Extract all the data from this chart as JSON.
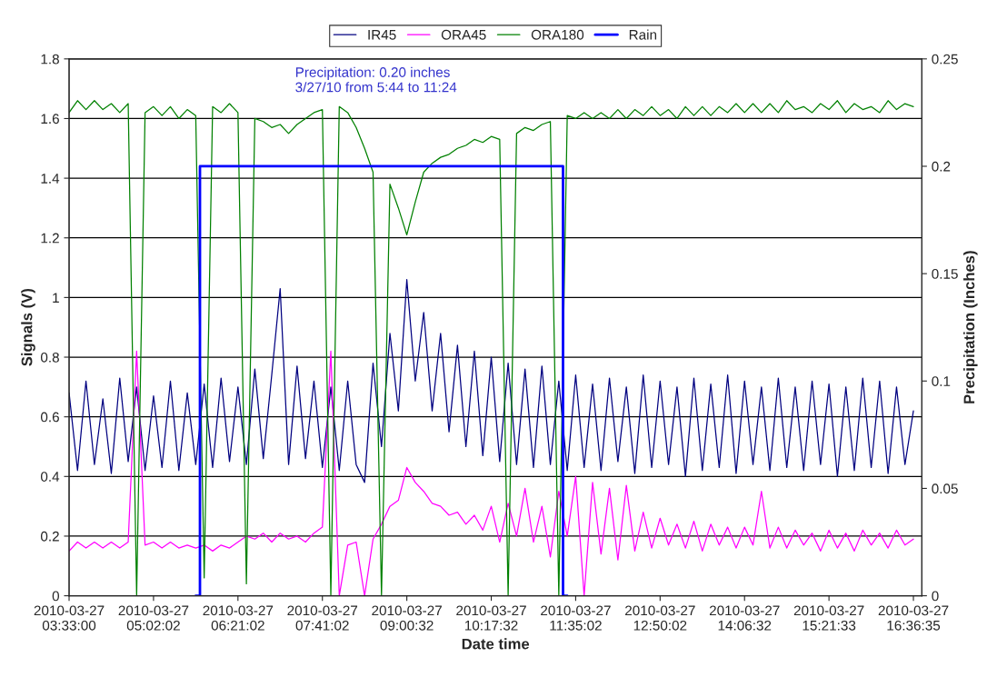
{
  "chart_data": {
    "type": "line",
    "xlabel": "Date time",
    "ylabel": "Signals (V)",
    "y2label": "Precipitation (Inches)",
    "annotations": [
      "Precipitation: 0.20 inches\n3/27/10 from 5:44 to 11:24"
    ],
    "categories": [
      "2010-03-27\n03:33:00",
      null,
      null,
      null,
      null,
      null,
      null,
      null,
      null,
      null,
      "2010-03-27\n05:02:02",
      null,
      null,
      null,
      null,
      null,
      null,
      null,
      null,
      null,
      "2010-03-27\n06:21:02",
      null,
      null,
      null,
      null,
      null,
      null,
      null,
      null,
      null,
      "2010-03-27\n07:41:02",
      null,
      null,
      null,
      null,
      null,
      null,
      null,
      null,
      null,
      "2010-03-27\n09:00:32",
      null,
      null,
      null,
      null,
      null,
      null,
      null,
      null,
      null,
      "2010-03-27\n10:17:32",
      null,
      null,
      null,
      null,
      null,
      null,
      null,
      null,
      null,
      "2010-03-27\n11:35:02",
      null,
      null,
      null,
      null,
      null,
      null,
      null,
      null,
      null,
      "2010-03-27\n12:50:02",
      null,
      null,
      null,
      null,
      null,
      null,
      null,
      null,
      null,
      "2010-03-27\n14:06:32",
      null,
      null,
      null,
      null,
      null,
      null,
      null,
      null,
      null,
      "2010-03-27\n15:21:33",
      null,
      null,
      null,
      null,
      null,
      null,
      null,
      null,
      null,
      "2010-03-27\n16:36:35"
    ],
    "ylim": [
      0,
      1.8
    ],
    "yticks": [
      0,
      0.2,
      0.4,
      0.6,
      0.8,
      1,
      1.2,
      1.4,
      1.6,
      1.8
    ],
    "y2lim": [
      0,
      0.25
    ],
    "y2ticks": [
      0,
      0.05,
      0.1,
      0.15,
      0.2,
      0.25
    ],
    "grid": "y",
    "legend": "top",
    "series": [
      {
        "name": "IR45",
        "color": "#000080",
        "values": [
          0.68,
          0.42,
          0.72,
          0.44,
          0.66,
          0.41,
          0.73,
          0.45,
          0.7,
          0.42,
          0.67,
          0.43,
          0.72,
          0.42,
          0.68,
          0.44,
          0.71,
          0.43,
          0.73,
          0.45,
          0.7,
          0.44,
          0.76,
          0.46,
          0.74,
          1.03,
          0.44,
          0.77,
          0.46,
          0.72,
          0.43,
          0.7,
          0.42,
          0.72,
          0.44,
          0.38,
          0.78,
          0.5,
          0.88,
          0.62,
          1.06,
          0.72,
          0.95,
          0.62,
          0.88,
          0.55,
          0.84,
          0.5,
          0.82,
          0.47,
          0.8,
          0.45,
          0.78,
          0.44,
          0.76,
          0.43,
          0.77,
          0.44,
          0.72,
          0.42,
          0.74,
          0.43,
          0.71,
          0.42,
          0.73,
          0.45,
          0.7,
          0.41,
          0.74,
          0.43,
          0.72,
          0.44,
          0.7,
          0.4,
          0.73,
          0.42,
          0.71,
          0.43,
          0.74,
          0.41,
          0.72,
          0.44,
          0.7,
          0.42,
          0.73,
          0.43,
          0.7,
          0.42,
          0.72,
          0.44,
          0.71,
          0.4,
          0.7,
          0.42,
          0.73,
          0.43,
          0.72,
          0.41,
          0.7,
          0.44,
          0.62
        ]
      },
      {
        "name": "ORA45",
        "color": "#ff00ff",
        "values": [
          0.15,
          0.18,
          0.16,
          0.18,
          0.16,
          0.18,
          0.16,
          0.18,
          0.82,
          0.17,
          0.18,
          0.16,
          0.18,
          0.16,
          0.17,
          0.16,
          0.17,
          0.15,
          0.17,
          0.16,
          0.18,
          0.2,
          0.19,
          0.21,
          0.18,
          0.21,
          0.19,
          0.2,
          0.18,
          0.21,
          0.23,
          0.82,
          0.0,
          0.17,
          0.18,
          0.0,
          0.19,
          0.24,
          0.3,
          0.32,
          0.43,
          0.38,
          0.35,
          0.31,
          0.3,
          0.27,
          0.28,
          0.24,
          0.27,
          0.22,
          0.3,
          0.18,
          0.31,
          0.2,
          0.36,
          0.18,
          0.3,
          0.13,
          0.35,
          0.2,
          0.4,
          0.0,
          0.38,
          0.14,
          0.36,
          0.12,
          0.37,
          0.15,
          0.28,
          0.16,
          0.26,
          0.17,
          0.24,
          0.16,
          0.25,
          0.15,
          0.24,
          0.17,
          0.23,
          0.16,
          0.23,
          0.17,
          0.35,
          0.16,
          0.23,
          0.16,
          0.22,
          0.17,
          0.21,
          0.15,
          0.22,
          0.16,
          0.21,
          0.15,
          0.22,
          0.17,
          0.21,
          0.16,
          0.22,
          0.17,
          0.19
        ]
      },
      {
        "name": "ORA180",
        "color": "#008000",
        "values": [
          1.62,
          1.66,
          1.63,
          1.66,
          1.63,
          1.65,
          1.62,
          1.65,
          0,
          1.62,
          1.64,
          1.61,
          1.64,
          1.6,
          1.63,
          1.61,
          0.06,
          1.64,
          1.62,
          1.65,
          1.62,
          0.04,
          1.6,
          1.59,
          1.57,
          1.58,
          1.55,
          1.58,
          1.6,
          1.62,
          1.63,
          0,
          1.64,
          1.62,
          1.57,
          1.5,
          1.42,
          0,
          1.38,
          1.3,
          1.21,
          1.32,
          1.42,
          1.45,
          1.47,
          1.48,
          1.5,
          1.51,
          1.53,
          1.52,
          1.54,
          1.53,
          0,
          1.55,
          1.57,
          1.56,
          1.58,
          1.59,
          0,
          1.61,
          1.6,
          1.62,
          1.6,
          1.62,
          1.6,
          1.63,
          1.6,
          1.63,
          1.61,
          1.64,
          1.61,
          1.63,
          1.6,
          1.64,
          1.61,
          1.64,
          1.61,
          1.64,
          1.62,
          1.65,
          1.62,
          1.65,
          1.62,
          1.65,
          1.62,
          1.66,
          1.63,
          1.64,
          1.62,
          1.65,
          1.63,
          1.66,
          1.62,
          1.65,
          1.63,
          1.64,
          1.62,
          1.66,
          1.63,
          1.65,
          1.64
        ]
      },
      {
        "name": "Rain",
        "color": "#0000ff",
        "axis": "y2",
        "type": "step",
        "values": [
          null,
          null,
          null,
          null,
          null,
          null,
          null,
          null,
          null,
          null,
          null,
          null,
          null,
          null,
          null,
          0,
          0.2,
          0.2,
          0.2,
          0.2,
          0.2,
          0.2,
          0.2,
          0.2,
          0.2,
          0.2,
          0.2,
          0.2,
          0.2,
          0.2,
          0.2,
          0.2,
          0.2,
          0.2,
          0.2,
          0.2,
          0.2,
          0.2,
          0.2,
          0.2,
          0.2,
          0.2,
          0.2,
          0.2,
          0.2,
          0.2,
          0.2,
          0.2,
          0.2,
          0.2,
          0.2,
          0.2,
          0.2,
          0.2,
          0.2,
          0.2,
          0.2,
          0.2,
          0.2,
          0,
          null,
          null,
          null,
          null,
          null,
          null,
          null,
          null,
          null,
          null,
          null,
          null,
          null,
          null,
          null,
          null,
          null,
          null,
          null,
          null,
          null,
          null,
          null,
          null,
          null,
          null,
          null,
          null,
          null,
          null,
          null,
          null,
          null,
          null,
          null,
          null,
          null,
          null,
          null,
          null,
          null
        ]
      }
    ]
  }
}
